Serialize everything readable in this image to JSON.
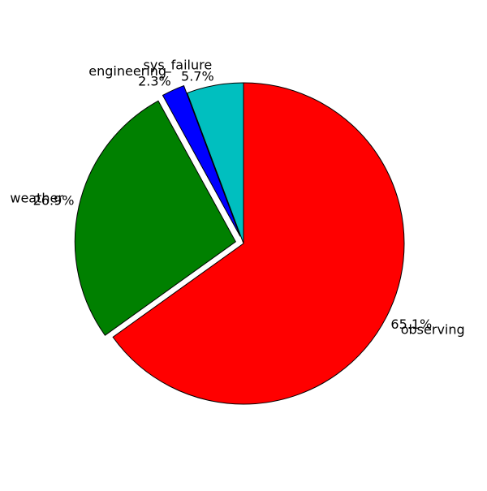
{
  "chart_data": {
    "type": "pie",
    "title": "",
    "start_angle_deg": 90,
    "direction": "counterclockwise",
    "slices": [
      {
        "label": "sys_failure",
        "value": 5.7,
        "pct_label": "5.7%",
        "color": "#00bfbf",
        "exploded": false
      },
      {
        "label": "engineering",
        "value": 2.3,
        "pct_label": "2.3%",
        "color": "#0000ff",
        "exploded": true
      },
      {
        "label": "weather",
        "value": 26.9,
        "pct_label": "26.9%",
        "color": "#008000",
        "exploded": true
      },
      {
        "label": "observing",
        "value": 65.1,
        "pct_label": "65.1%",
        "color": "#ff0000",
        "exploded": false
      }
    ],
    "edge_color": "#000000"
  }
}
